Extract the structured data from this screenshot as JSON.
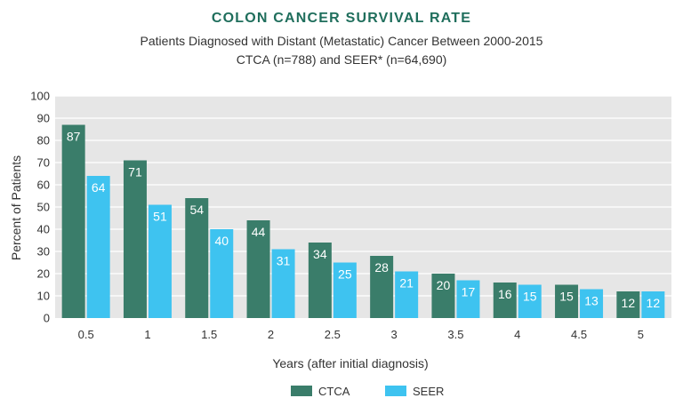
{
  "chart_data": {
    "type": "bar",
    "title": "COLON CANCER SURVIVAL RATE",
    "subtitle_line1": "Patients Diagnosed with Distant (Metastatic) Cancer Between 2000-2015",
    "subtitle_line2": "CTCA (n=788) and SEER* (n=64,690)",
    "xlabel": "Years (after initial diagnosis)",
    "ylabel": "Percent of Patients",
    "ylim": [
      0,
      100
    ],
    "yticks": [
      "0",
      "10",
      "20",
      "30",
      "40",
      "50",
      "60",
      "70",
      "80",
      "90",
      "100"
    ],
    "ytick_values": [
      0,
      10,
      20,
      30,
      40,
      50,
      60,
      70,
      80,
      90,
      100
    ],
    "categories": [
      "0.5",
      "1",
      "1.5",
      "2",
      "2.5",
      "3",
      "3.5",
      "4",
      "4.5",
      "5"
    ],
    "series": [
      {
        "name": "CTCA",
        "color": "#3a7d6a",
        "values": [
          87,
          71,
          54,
          44,
          34,
          28,
          20,
          16,
          15,
          12
        ]
      },
      {
        "name": "SEER",
        "color": "#3ec3f0",
        "values": [
          64,
          51,
          40,
          31,
          25,
          21,
          17,
          15,
          13,
          12
        ]
      }
    ],
    "grid": true,
    "legend_position": "bottom-center",
    "colors": {
      "title": "#1f6e5c",
      "plot_bg": "#e6e6e6",
      "grid": "#ffffff"
    }
  }
}
